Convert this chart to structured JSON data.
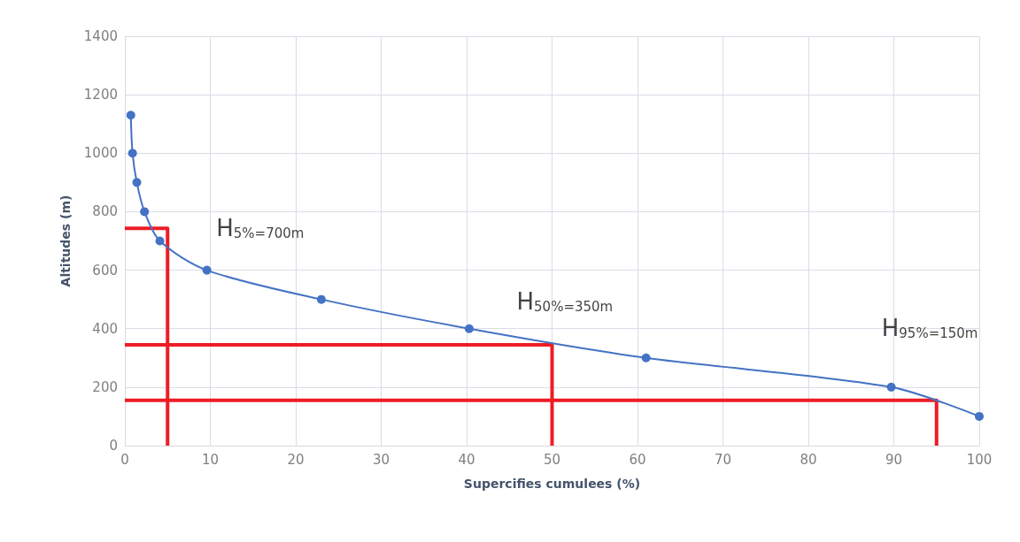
{
  "chart_data": {
    "type": "line",
    "xlabel": "Supercifies cumulees (%)",
    "ylabel": "Altitudes (m)",
    "xlim": [
      0,
      100
    ],
    "xticks": [
      0,
      10,
      20,
      30,
      40,
      50,
      60,
      70,
      80,
      90,
      100
    ],
    "ylim": [
      0,
      1400
    ],
    "yticks": [
      0,
      200,
      400,
      600,
      800,
      1000,
      1200,
      1400
    ],
    "grid": true,
    "marker": "circle",
    "line_style": "solid",
    "series": [
      {
        "color": "#4472c4",
        "x": [
          0.7,
          0.9,
          1.4,
          2.3,
          4.1,
          9.6,
          23,
          40.3,
          61,
          89.7,
          100
        ],
        "values": [
          1130,
          1000,
          900,
          800,
          700,
          600,
          500,
          400,
          300,
          200,
          100
        ]
      },
      {
        "color": "#ee1c25",
        "marker": "none",
        "x": [
          0,
          5,
          5
        ],
        "values": [
          743,
          743,
          0
        ]
      },
      {
        "color": "#ee1c25",
        "marker": "none",
        "x": [
          0,
          50,
          50
        ],
        "values": [
          345,
          345,
          0
        ]
      },
      {
        "color": "#ee1c25",
        "marker": "none",
        "x": [
          0,
          95,
          95
        ],
        "values": [
          155,
          155,
          0
        ]
      }
    ],
    "annotations": [
      "H$_{5%=700m}$",
      "H$_{50%=350m}$",
      "H$_{95%=150m}$"
    ]
  }
}
